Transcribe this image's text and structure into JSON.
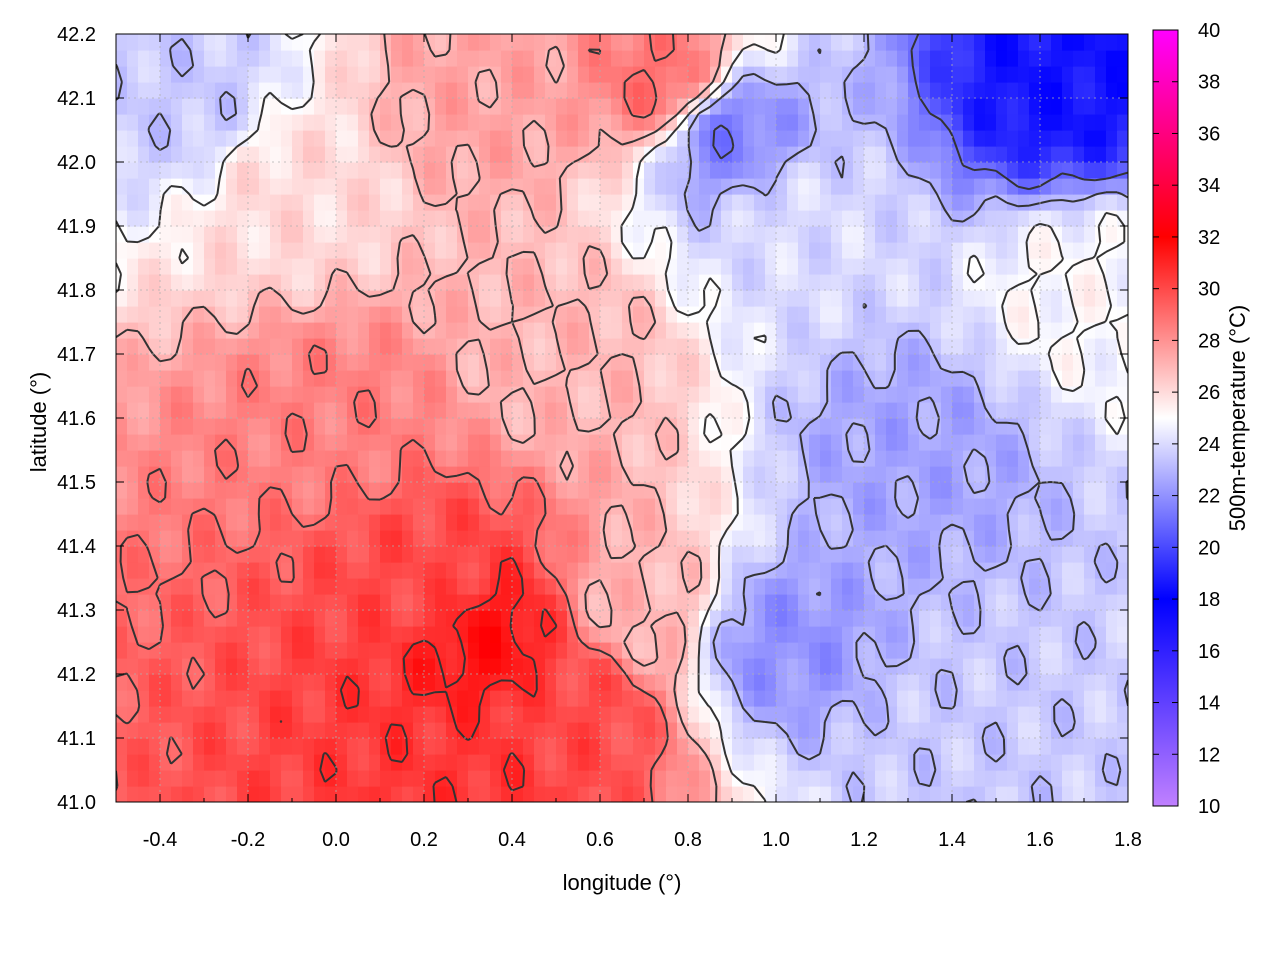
{
  "chart_data": {
    "type": "heatmap",
    "title": "",
    "xlabel": "longitude (°)",
    "ylabel": "latitude (°)",
    "colorbar_label": "500m-temperature (°C)",
    "xlim": [
      -0.5,
      1.8
    ],
    "ylim": [
      41.0,
      42.2
    ],
    "x_ticks": [
      "-0.4",
      "-0.2",
      "0.0",
      "0.2",
      "0.4",
      "0.6",
      "0.8",
      "1.0",
      "1.2",
      "1.4",
      "1.6",
      "1.8"
    ],
    "x_tick_values": [
      -0.4,
      -0.2,
      0.0,
      0.2,
      0.4,
      0.6,
      0.8,
      1.0,
      1.2,
      1.4,
      1.6,
      1.8
    ],
    "y_ticks": [
      "41.0",
      "41.1",
      "41.2",
      "41.3",
      "41.4",
      "41.5",
      "41.6",
      "41.7",
      "41.8",
      "41.9",
      "42.0",
      "42.1",
      "42.2"
    ],
    "y_tick_values": [
      41.0,
      41.1,
      41.2,
      41.3,
      41.4,
      41.5,
      41.6,
      41.7,
      41.8,
      41.9,
      42.0,
      42.1,
      42.2
    ],
    "colorbar_ticks": [
      "10",
      "12",
      "14",
      "16",
      "18",
      "20",
      "22",
      "24",
      "26",
      "28",
      "30",
      "32",
      "34",
      "36",
      "38",
      "40"
    ],
    "colorbar_tick_values": [
      10,
      12,
      14,
      16,
      18,
      20,
      22,
      24,
      26,
      28,
      30,
      32,
      34,
      36,
      38,
      40
    ],
    "colorbar_range": [
      10,
      40
    ],
    "colormap": [
      {
        "value": 10,
        "color": "#c080ff"
      },
      {
        "value": 18,
        "color": "#0000ff"
      },
      {
        "value": 25,
        "color": "#ffffff"
      },
      {
        "value": 32,
        "color": "#ff0000"
      },
      {
        "value": 40,
        "color": "#ff00ff"
      }
    ],
    "grid": true,
    "contours": true,
    "contour_color": "#333333",
    "regions": [
      {
        "lon": -0.35,
        "lat": 42.1,
        "t": 23.5
      },
      {
        "lon": -0.1,
        "lat": 41.95,
        "t": 26.0
      },
      {
        "lon": 0.0,
        "lat": 41.6,
        "t": 28.5
      },
      {
        "lon": 0.2,
        "lat": 41.35,
        "t": 30.0
      },
      {
        "lon": 0.35,
        "lat": 41.25,
        "t": 31.5
      },
      {
        "lon": 0.3,
        "lat": 41.05,
        "t": 30.5
      },
      {
        "lon": 0.55,
        "lat": 41.15,
        "t": 30.0
      },
      {
        "lon": 0.5,
        "lat": 41.7,
        "t": 27.0
      },
      {
        "lon": 0.35,
        "lat": 42.1,
        "t": 27.5
      },
      {
        "lon": 0.75,
        "lat": 42.12,
        "t": 29.0
      },
      {
        "lon": 0.88,
        "lat": 42.05,
        "t": 21.5
      },
      {
        "lon": 1.05,
        "lat": 41.9,
        "t": 24.0
      },
      {
        "lon": 1.3,
        "lat": 41.55,
        "t": 22.5
      },
      {
        "lon": 1.0,
        "lat": 41.25,
        "t": 22.0
      },
      {
        "lon": 1.4,
        "lat": 41.1,
        "t": 23.5
      },
      {
        "lon": 1.65,
        "lat": 42.12,
        "t": 18.5
      },
      {
        "lon": 1.7,
        "lat": 41.8,
        "t": 25.0
      },
      {
        "lon": 0.7,
        "lat": 41.3,
        "t": 27.0
      }
    ]
  }
}
